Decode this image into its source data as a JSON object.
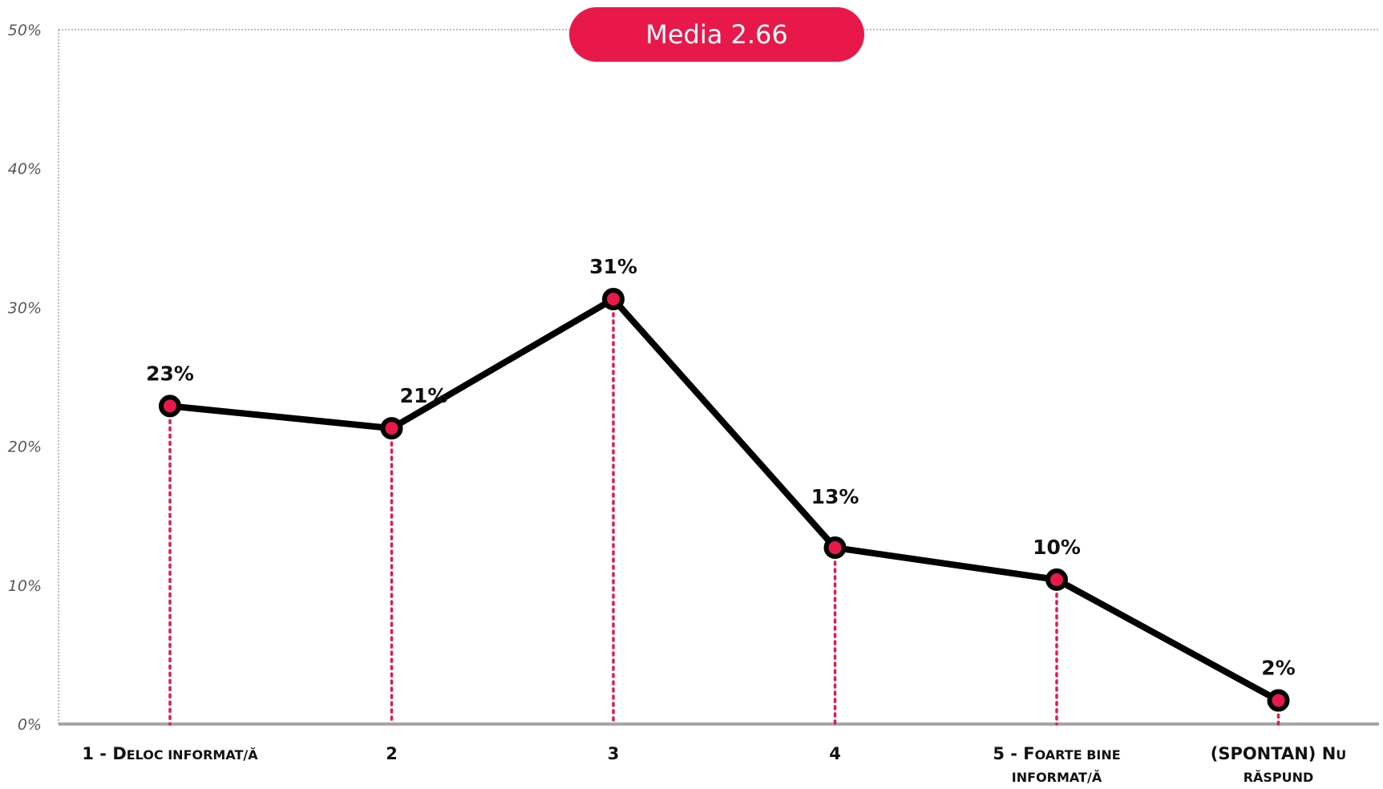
{
  "chart_data": {
    "type": "line",
    "categories": [
      {
        "label": "1 - Deloc informat/ă",
        "lines": [
          [
            "1 - ",
            "D",
            "eloc informat/ă"
          ]
        ]
      },
      {
        "label": "2",
        "lines": [
          [
            "2"
          ]
        ]
      },
      {
        "label": "3",
        "lines": [
          [
            "3"
          ]
        ]
      },
      {
        "label": "4",
        "lines": [
          [
            "4"
          ]
        ]
      },
      {
        "label": "5 - Foarte bine informat/ă",
        "lines": [
          [
            "5 - ",
            "F",
            "oarte bine"
          ],
          [
            "",
            "",
            "informat/ă"
          ]
        ]
      },
      {
        "label": "(SPONTAN) Nu răspund",
        "lines": [
          [
            "(SPONTAN) ",
            "N",
            "u"
          ],
          [
            "",
            "",
            "răspund"
          ]
        ]
      }
    ],
    "values": [
      23,
      21,
      31,
      13,
      10,
      2
    ],
    "value_labels": [
      "23%",
      "21%",
      "31%",
      "13%",
      "10%",
      "2%"
    ],
    "value_precise": [
      22.9,
      21.3,
      30.6,
      12.7,
      10.4,
      1.7
    ],
    "y_ticks": [
      "0%",
      "10%",
      "20%",
      "30%",
      "40%",
      "50%"
    ],
    "ylim": [
      0,
      50
    ],
    "grid": false,
    "title": "",
    "xlabel": "",
    "ylabel": "",
    "annotation": "Media 2.66",
    "colors": {
      "line": "#000000",
      "marker_fill": "#e8194a",
      "drop_line": "#e8194a",
      "badge": "#e8194a",
      "axis": "#a6a6a6"
    }
  }
}
